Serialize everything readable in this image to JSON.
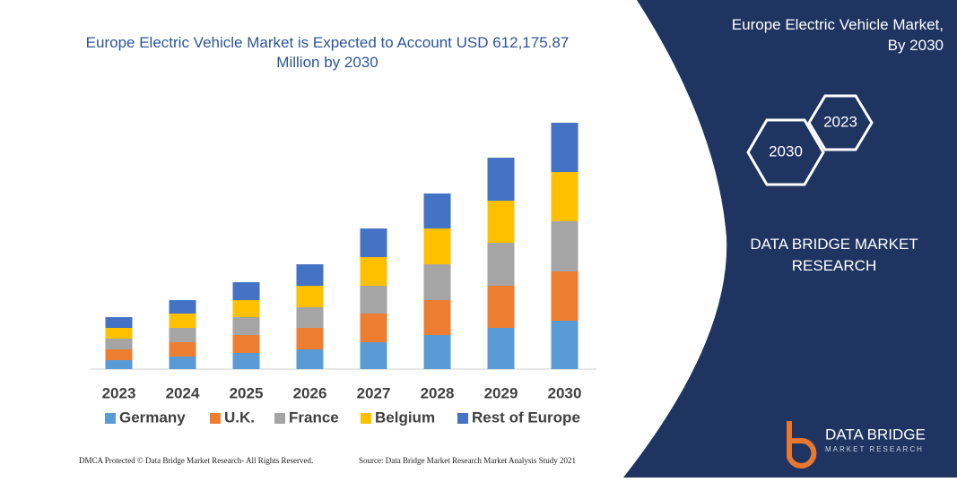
{
  "chart_data": {
    "type": "stacked-bar",
    "title": "Europe Electric Vehicle Market is Expected to Account USD 612,175.87 Million by 2030",
    "categories": [
      "2023",
      "2024",
      "2025",
      "2026",
      "2027",
      "2028",
      "2029",
      "2030"
    ],
    "series": [
      {
        "name": "Germany",
        "color": "#5b9bd5",
        "values": [
          10,
          14,
          18,
          22,
          30,
          38,
          46,
          54
        ]
      },
      {
        "name": "U.K.",
        "color": "#ed7d31",
        "values": [
          12,
          16,
          20,
          24,
          32,
          39,
          47,
          55
        ]
      },
      {
        "name": "France",
        "color": "#a5a5a5",
        "values": [
          12,
          16,
          20,
          23,
          31,
          40,
          48,
          56
        ]
      },
      {
        "name": "Belgium",
        "color": "#ffc000",
        "values": [
          12,
          16,
          19,
          24,
          32,
          40,
          47,
          55
        ]
      },
      {
        "name": "Rest of Europe",
        "color": "#4472c4",
        "values": [
          12,
          15,
          20,
          24,
          32,
          39,
          48,
          55
        ]
      }
    ],
    "ylim": [
      0,
      280
    ]
  },
  "panel": {
    "title": "Europe Electric Vehicle Market, By 2030",
    "hex_back": "2023",
    "hex_front": "2030",
    "company": "DATA BRIDGE MARKET RESEARCH"
  },
  "logo": {
    "name": "DATA BRIDGE",
    "tagline": "MARKET RESEARCH"
  },
  "footer": {
    "left": "DMCA Protected © Data Bridge Market Research- All Rights Reserved.",
    "right": "Source: Data Bridge Market Research Market Analysis Study 2021"
  }
}
